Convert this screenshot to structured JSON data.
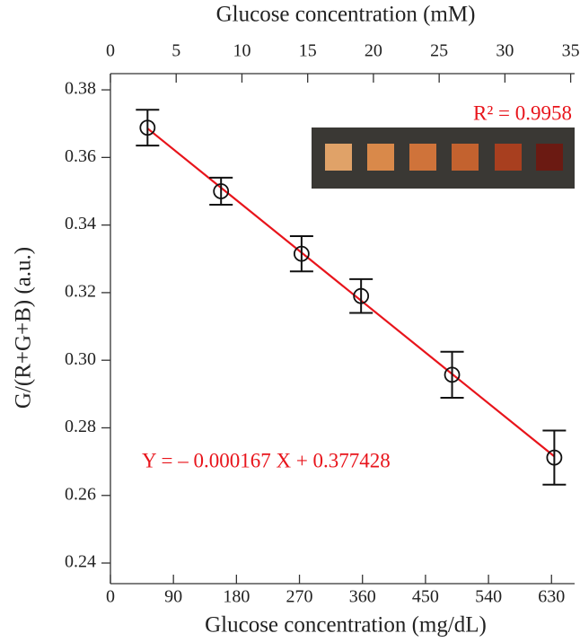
{
  "chart_data": {
    "type": "scatter",
    "x_label": "Glucose concentration (mg/dL)",
    "x2_label": "Glucose concentration (mM)",
    "y_label": "G/(R+G+B) (a.u.)",
    "xlim": [
      0,
      663
    ],
    "xticks": [
      0,
      90,
      180,
      270,
      360,
      450,
      540,
      630
    ],
    "x2lim": [
      0,
      35.3
    ],
    "x2ticks": [
      0,
      5,
      10,
      15,
      20,
      25,
      30,
      35
    ],
    "ylim": [
      0.2339,
      0.3848
    ],
    "yticks": [
      0.24,
      0.26,
      0.28,
      {
        "value": 0.3,
        "label": "0.30"
      },
      0.32,
      0.34,
      0.36,
      0.38
    ],
    "series": [
      {
        "color": "#111111",
        "x": [
          53,
          158,
          273,
          358,
          488,
          634
        ],
        "values": [
          0.3688,
          0.35,
          0.3315,
          0.319,
          0.2957,
          0.2712
        ],
        "errors": [
          0.0053,
          0.004,
          0.0052,
          0.005,
          0.0068,
          0.008
        ]
      }
    ],
    "fit": {
      "slope": -0.000167,
      "intercept": 0.377428,
      "color": "#e8141b",
      "label": "Y = – 0.000167 X + 0.377428"
    },
    "r2_label": "R² = 0.9958"
  }
}
